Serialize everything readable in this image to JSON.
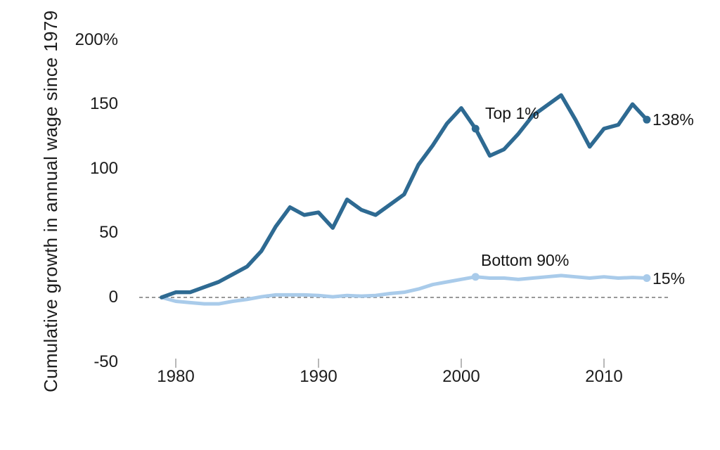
{
  "chart_data": {
    "type": "line",
    "title": "",
    "xlabel": "",
    "ylabel": "Cumulative growth in annual wage since 1979",
    "x": [
      1979,
      1980,
      1981,
      1982,
      1983,
      1984,
      1985,
      1986,
      1987,
      1988,
      1989,
      1990,
      1991,
      1992,
      1993,
      1994,
      1995,
      1996,
      1997,
      1998,
      1999,
      2000,
      2001,
      2002,
      2003,
      2004,
      2005,
      2006,
      2007,
      2008,
      2009,
      2010,
      2011,
      2012,
      2013
    ],
    "series": [
      {
        "name": "Top 1%",
        "color": "#2e6a92",
        "end_label": "138%",
        "end_value": 138,
        "values": [
          0,
          4,
          4,
          8,
          12,
          18,
          24,
          36,
          55,
          70,
          64,
          66,
          54,
          76,
          68,
          64,
          72,
          80,
          103,
          118,
          135,
          147,
          131,
          110,
          115,
          127,
          141,
          149,
          157,
          138,
          117,
          131,
          134,
          150,
          138
        ]
      },
      {
        "name": "Bottom 90%",
        "color": "#a9cbea",
        "end_label": "15%",
        "end_value": 15,
        "values": [
          0,
          -3,
          -4,
          -5,
          -5,
          -3,
          -1.5,
          0.5,
          2,
          2,
          2,
          1.5,
          0.5,
          1.5,
          1,
          1.5,
          3,
          4,
          6.5,
          10,
          12,
          14,
          16,
          15,
          15,
          14,
          15,
          16,
          17,
          16,
          15,
          16,
          15,
          15.5,
          15
        ]
      }
    ],
    "marker_years": [
      2001,
      2013
    ],
    "x_ticks": [
      1980,
      1990,
      2000,
      2010
    ],
    "y_ticks": [
      {
        "label": "200%",
        "value": 200
      },
      {
        "label": "150",
        "value": 150
      },
      {
        "label": "100",
        "value": 100
      },
      {
        "label": "50",
        "value": 50
      },
      {
        "label": "0",
        "value": 0
      },
      {
        "label": "-50",
        "value": -50
      }
    ],
    "xlim": [
      1979,
      2013
    ],
    "ylim": [
      -50,
      200
    ],
    "grid": false,
    "zero_line": {
      "style": "dashed",
      "color": "#999999"
    },
    "legend_position": "inline-labels"
  },
  "colors": {
    "text": "#1c1c1c",
    "tick_mark": "#b8b8b8",
    "zero_line": "#999999",
    "background": "#ffffff"
  }
}
